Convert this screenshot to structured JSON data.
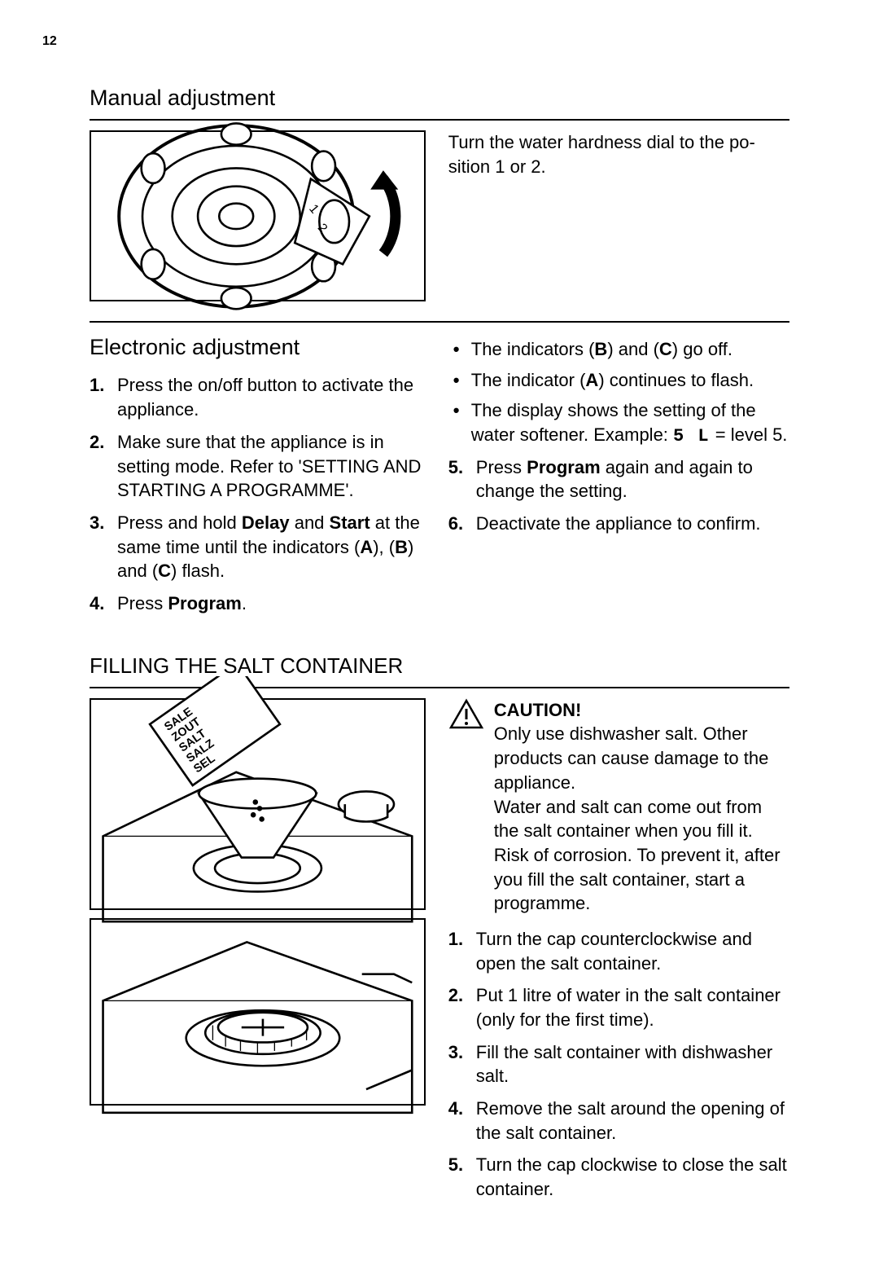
{
  "page_number": "12",
  "manual_adjustment": {
    "heading": "Manual adjustment",
    "body": "Turn the water hardness dial to the po­sition 1 or 2."
  },
  "electronic_adjustment": {
    "heading": "Electronic adjustment",
    "steps_left": [
      "Press the on/off button to activate the appliance.",
      "Make sure that the appliance is in setting mode. Refer to 'SETTING AND STARTING A PROGRAMME'.",
      "Press and hold __B__Delay__/B__ and __B__Start__/B__ at the same time until the indicators (__B__A__/B__), (__B__B__/B__) and (__B__C__/B__) flash.",
      "Press __B__Program__/B__."
    ],
    "bullets_right": [
      "The indicators (__B__B__/B__) and (__B__C__/B__) go off.",
      "The indicator (__B__A__/B__) continues to flash.",
      "The display shows the setting of the water softener. Example: __7S__ = level 5."
    ],
    "steps_right": [
      "Press __B__Program__/B__ again and again to change the setting.",
      "Deactivate the appliance to confirm."
    ],
    "seven_seg_example": "5 L",
    "steps_right_start": 5
  },
  "filling_salt": {
    "heading": "FILLING THE SALT CONTAINER",
    "caution_label": "CAUTION!",
    "caution_body": "Only use dishwasher salt. Other products can cause damage to the appliance.\nWater and salt can come out from the salt container when you fill it. Risk of corrosion. To prevent it, after you fill the salt container, start a programme.",
    "steps": [
      "Turn the cap counterclockwise and open the salt container.",
      "Put 1 litre of water in the salt con­tainer (only for the first time).",
      "Fill the salt container with dish­washer salt.",
      "Remove the salt around the open­ing of the salt container.",
      "Turn the cap clockwise to close the salt container."
    ]
  },
  "figure_labels": {
    "salt_words": [
      "SALE",
      "ZOUT",
      "SALT",
      "SALZ",
      "SEL"
    ]
  },
  "colors": {
    "text": "#000000",
    "background": "#ffffff",
    "rule": "#000000"
  }
}
